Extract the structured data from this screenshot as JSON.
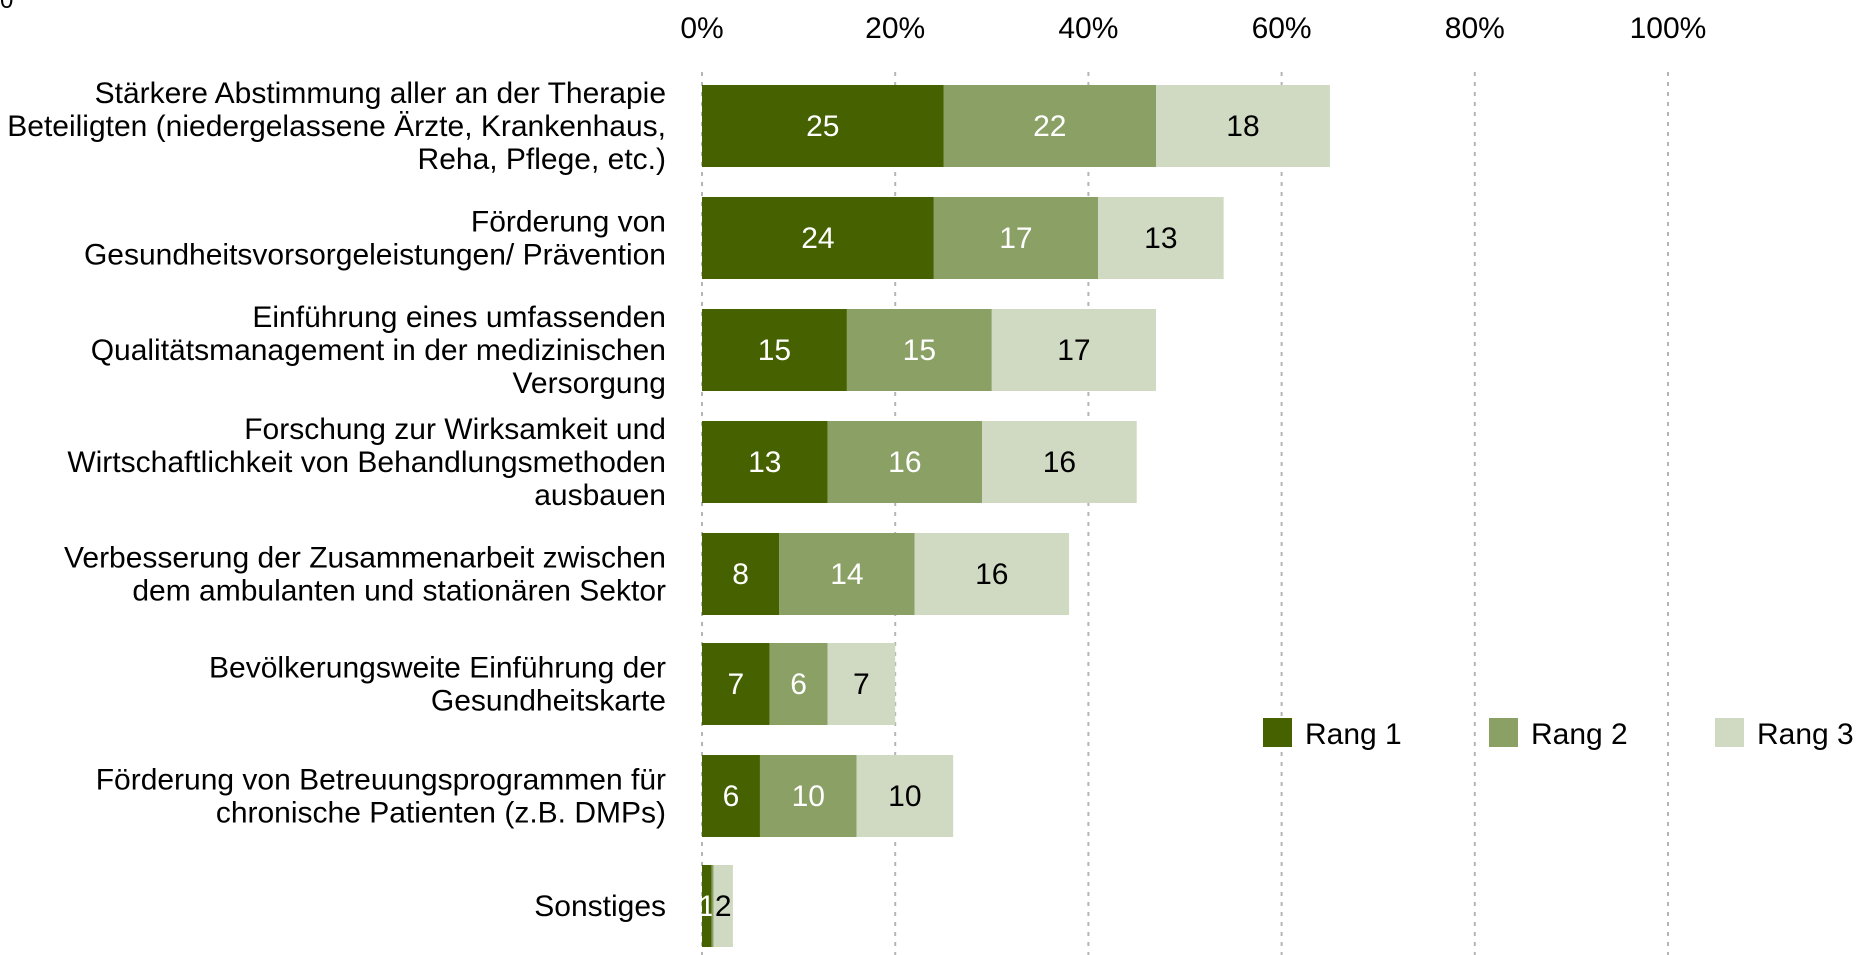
{
  "chart_data": {
    "type": "bar",
    "orientation": "horizontal",
    "stacked": true,
    "x_ticks": [
      "0%",
      "20%",
      "40%",
      "60%",
      "80%",
      "100%"
    ],
    "xlim": [
      0,
      100
    ],
    "grid": "vertical dotted",
    "legend_position": "right",
    "categories": [
      [
        "Stärkere Abstimmung aller an der Therapie",
        "Beteiligten  (niedergelassene Ärzte, Krankenhaus,",
        "Reha, Pflege, etc.)"
      ],
      [
        "Förderung von",
        "Gesundheitsvorsorgeleistungen/ Prävention"
      ],
      [
        "Einführung eines umfassenden",
        "Qualitätsmanagement in der medizinischen",
        "Versorgung"
      ],
      [
        "Forschung zur Wirksamkeit und",
        "Wirtschaftlichkeit von Behandlungsmethoden",
        "ausbauen"
      ],
      [
        "Verbesserung der Zusammenarbeit zwischen",
        "dem ambulanten und stationären Sektor"
      ],
      [
        "Bevölkerungsweite Einführung der",
        "Gesundheitskarte"
      ],
      [
        "Förderung von Betreuungsprogrammen für",
        "chronische Patienten  (z.B. DMPs)"
      ],
      [
        "Sonstiges"
      ]
    ],
    "series": [
      {
        "name": "Rang 1",
        "color": "#456100",
        "label_color": "#ffffff",
        "values": [
          25,
          24,
          15,
          13,
          8,
          7,
          6,
          1
        ]
      },
      {
        "name": "Rang 2",
        "color": "#8aa064",
        "label_color": "#ffffff",
        "values": [
          22,
          17,
          15,
          16,
          14,
          6,
          10,
          0.2
        ]
      },
      {
        "name": "Rang 3",
        "color": "#d0d9c1",
        "label_color": "#000000",
        "values": [
          18,
          13,
          17,
          16,
          16,
          7,
          10,
          2
        ]
      }
    ]
  }
}
